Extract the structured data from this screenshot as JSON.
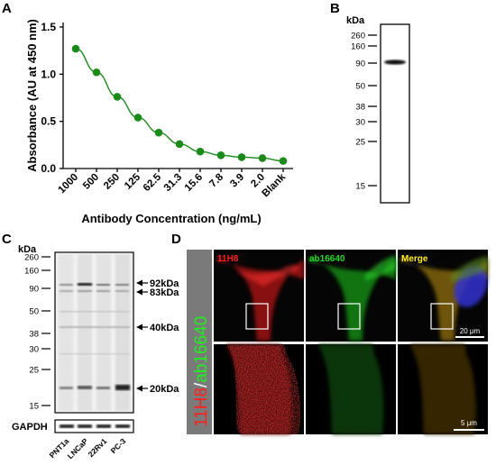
{
  "panels": {
    "A": "A",
    "B": "B",
    "C": "C",
    "D": "D"
  },
  "chart_data": [
    {
      "type": "line",
      "panel": "A",
      "xlabel": "Antibody Concentration (ng/mL)",
      "ylabel": "Absorbance (AU at 450 nm)",
      "categories": [
        "1000",
        "500",
        "250",
        "125",
        "62.5",
        "31.3",
        "15.6",
        "7.8",
        "3.9",
        "2.0",
        "Blank"
      ],
      "values": [
        1.27,
        1.02,
        0.76,
        0.54,
        0.38,
        0.26,
        0.18,
        0.14,
        0.12,
        0.11,
        0.08
      ],
      "ylim": [
        0,
        1.5
      ],
      "yticks": [
        "0.0",
        "0.5",
        "1.0",
        "1.5"
      ],
      "ytick_values": [
        0,
        0.5,
        1.0,
        1.5
      ],
      "color": "#1a8a1a"
    },
    {
      "type": "table",
      "panel": "B",
      "unit": "kDa",
      "markers": [
        "260",
        "160",
        "90",
        "50",
        "38",
        "30",
        "25",
        "15"
      ],
      "marker_values": [
        260,
        160,
        90,
        50,
        38,
        30,
        25,
        15
      ]
    },
    {
      "type": "table",
      "panel": "C",
      "unit": "kDa",
      "markers": [
        "260",
        "160",
        "90",
        "50",
        "38",
        "30",
        "25",
        "15"
      ],
      "marker_values": [
        260,
        160,
        90,
        50,
        38,
        30,
        25,
        15
      ],
      "band_labels": [
        "92kDa",
        "83kDa",
        "40kDa",
        "20kDa"
      ],
      "loading_control": "GAPDH",
      "lanes": [
        "PNT1a",
        "LNCaP",
        "22Rv1",
        "PC-3"
      ]
    }
  ],
  "microscopy": {
    "side_label_a": "11H8",
    "side_label_sep": "/",
    "side_label_b": "ab16640",
    "channels": [
      "11H8",
      "ab16640",
      "Merge"
    ],
    "channel_colors": [
      "#ff2020",
      "#22dd22",
      "#ffee22"
    ],
    "scalebar_top": "20 μm",
    "scalebar_bottom": "5 μm"
  }
}
